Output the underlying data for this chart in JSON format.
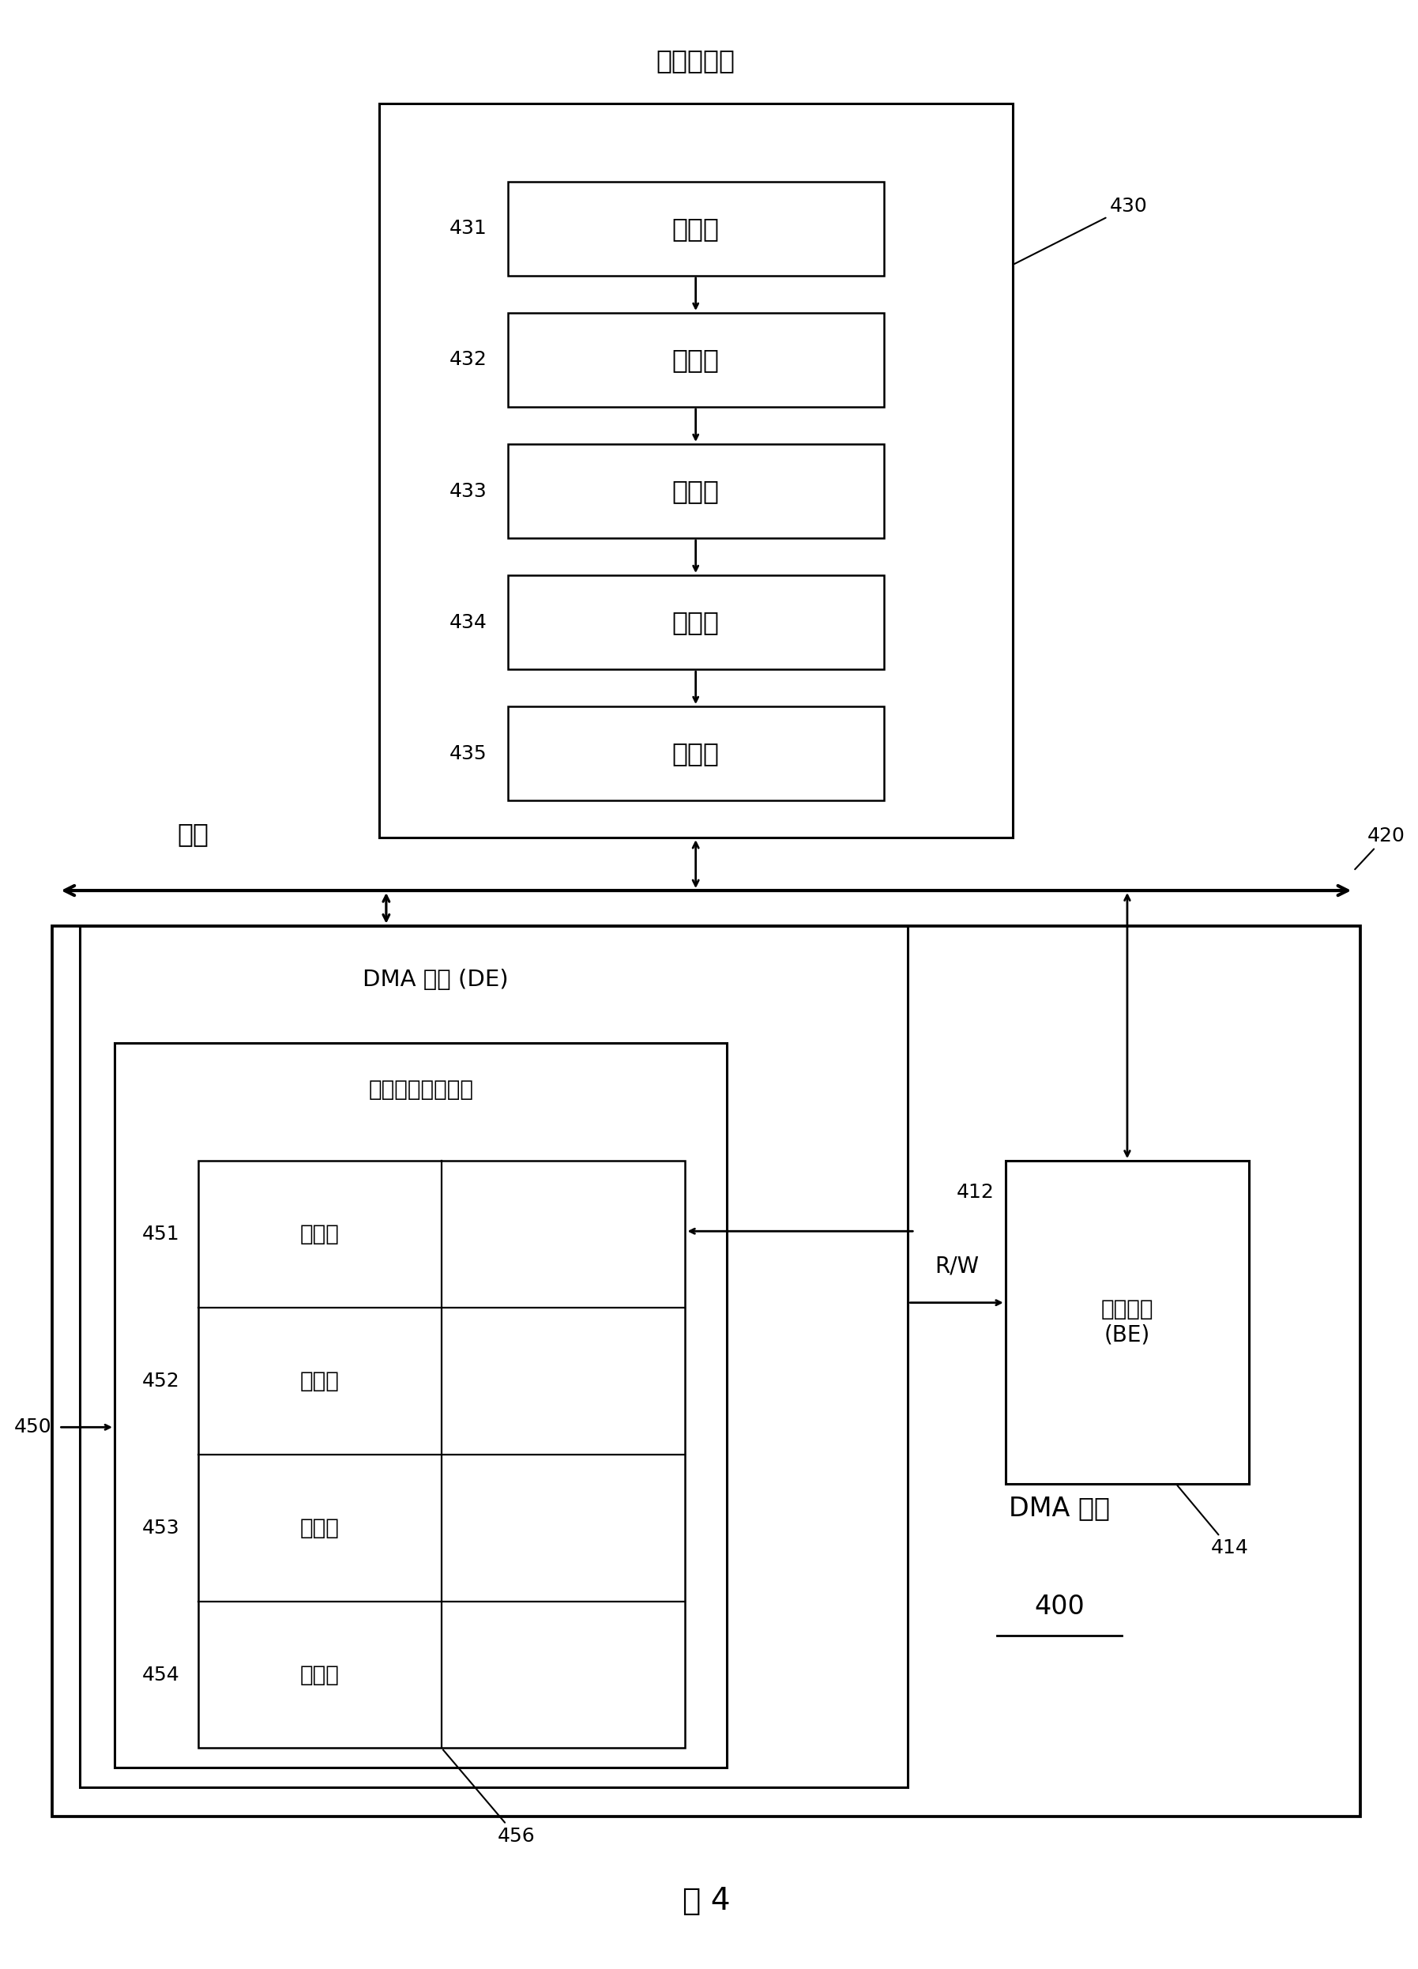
{
  "bg_color": "#ffffff",
  "title_fig": "图 4",
  "sys_mem_label": "系统存儲器",
  "desc_label": "描述符",
  "desc_nums_sys": [
    "431",
    "432",
    "433",
    "434",
    "435"
  ],
  "dma_device_label": "DMA 设备",
  "dma_device_num": "400",
  "bus_label": "总线",
  "bus_num": "420",
  "de_label": "DMA 引擎 (DE)",
  "prefetch_label": "描述符预取缓冲器",
  "be_label": "总线引擎\n(BE)",
  "rw_label": "R/W",
  "label_412": "412",
  "label_414": "414",
  "label_430": "430",
  "label_450": "450",
  "label_456": "456",
  "desc_nums_buf": [
    "451",
    "452",
    "453",
    "454"
  ]
}
